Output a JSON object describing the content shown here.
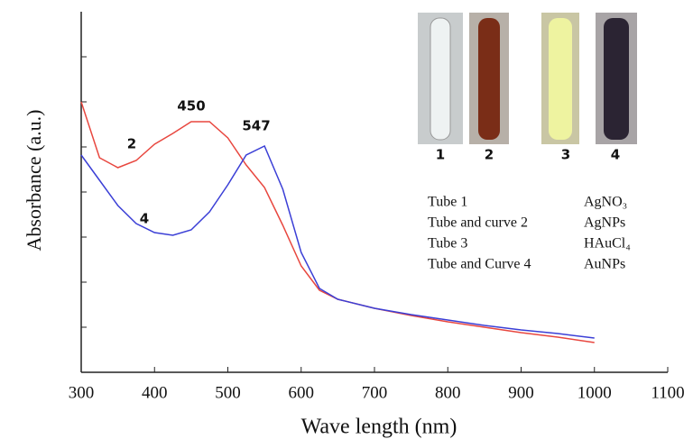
{
  "chart_data": {
    "type": "line",
    "x_label": "Wave length (nm)",
    "y_label": "Absorbance (a.u.)",
    "xlim": [
      300,
      1100
    ],
    "xticks": [
      300,
      400,
      500,
      600,
      700,
      800,
      900,
      1000,
      1100
    ],
    "ylim": [
      0,
      8
    ],
    "yticks": [
      1,
      2,
      3,
      4,
      5,
      6,
      7
    ],
    "x": [
      300,
      325,
      350,
      375,
      400,
      425,
      450,
      475,
      500,
      525,
      550,
      575,
      600,
      625,
      650,
      700,
      750,
      800,
      850,
      900,
      950,
      1000
    ],
    "series": [
      {
        "name": "2",
        "color": "#e8473f",
        "values": [
          6.0,
          4.76,
          4.54,
          4.7,
          5.06,
          5.3,
          5.56,
          5.56,
          5.2,
          4.6,
          4.1,
          3.26,
          2.36,
          1.82,
          1.62,
          1.42,
          1.26,
          1.12,
          1.0,
          0.88,
          0.78,
          0.66
        ]
      },
      {
        "name": "4",
        "color": "#3b3fd6",
        "values": [
          4.82,
          4.26,
          3.7,
          3.3,
          3.1,
          3.04,
          3.16,
          3.56,
          4.16,
          4.82,
          5.02,
          4.06,
          2.66,
          1.86,
          1.62,
          1.42,
          1.28,
          1.16,
          1.04,
          0.94,
          0.86,
          0.76
        ]
      }
    ],
    "annotations": [
      "450",
      "547"
    ],
    "tube_labels": [
      "1",
      "2",
      "3",
      "4"
    ],
    "legend_table": [
      [
        "Tube 1",
        "AgNO₃"
      ],
      [
        "Tube and curve 2",
        "AgNPs"
      ],
      [
        "Tube 3",
        "HAuCl₄"
      ],
      [
        "Tube and Curve 4",
        "AuNPs"
      ]
    ]
  }
}
